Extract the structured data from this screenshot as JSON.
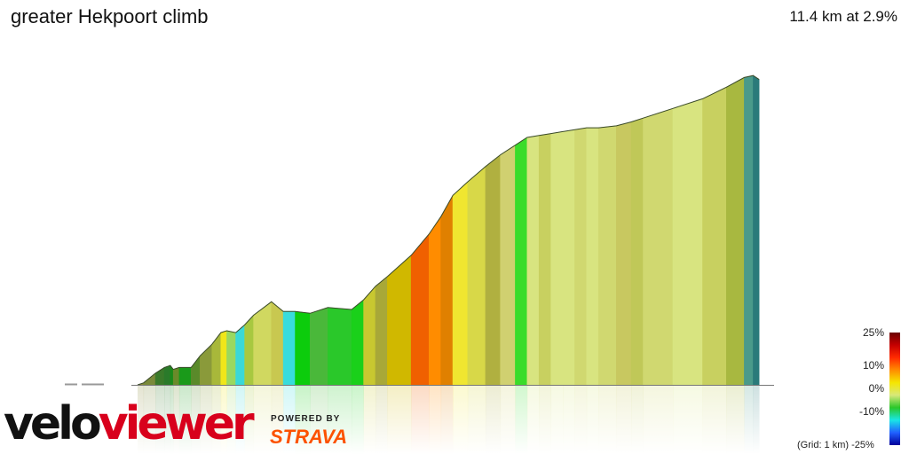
{
  "header": {
    "title": "greater Hekpoort climb",
    "summary": "11.4 km at 2.9%"
  },
  "branding": {
    "logo_left": "velo",
    "logo_right": "viewer",
    "powered_by": "POWERED BY",
    "strava": "STRAVA"
  },
  "legend": {
    "labels": [
      "25%",
      "10%",
      "0%",
      "-10%",
      "-25%"
    ],
    "grid_note": "(Grid: 1 km)",
    "colors": [
      "#6b0000",
      "#c40000",
      "#ff2a00",
      "#ff8c00",
      "#f5e600",
      "#d8e87a",
      "#2ac72a",
      "#19e6e6",
      "#2060ff",
      "#00009a"
    ]
  },
  "chart_data": {
    "type": "area",
    "title": "greater Hekpoort climb",
    "xlabel": "",
    "ylabel": "",
    "distance_km": 11.4,
    "avg_grade_pct": 2.9,
    "grid_km": 1,
    "x_km": [
      0.0,
      0.1,
      0.3,
      0.45,
      0.55,
      0.6,
      0.7,
      0.9,
      1.05,
      1.25,
      1.4,
      1.5,
      1.65,
      1.8,
      1.95,
      2.25,
      2.45,
      2.65,
      2.9,
      3.2,
      3.6,
      3.8,
      4.0,
      4.2,
      4.6,
      4.9,
      5.1,
      5.3,
      5.55,
      5.85,
      6.1,
      6.35,
      6.55,
      6.75,
      6.95,
      7.15,
      7.35,
      7.55,
      7.75,
      8.05,
      8.3,
      8.5,
      9.0,
      9.5,
      9.9,
      10.2,
      10.35,
      10.45
    ],
    "elevation_norm": [
      0.0,
      0.01,
      0.06,
      0.09,
      0.1,
      0.08,
      0.09,
      0.09,
      0.15,
      0.21,
      0.27,
      0.28,
      0.27,
      0.31,
      0.36,
      0.43,
      0.38,
      0.38,
      0.37,
      0.4,
      0.39,
      0.44,
      0.51,
      0.56,
      0.67,
      0.78,
      0.87,
      0.98,
      1.05,
      1.13,
      1.19,
      1.24,
      1.28,
      1.29,
      1.3,
      1.31,
      1.32,
      1.33,
      1.33,
      1.34,
      1.36,
      1.38,
      1.43,
      1.48,
      1.54,
      1.59,
      1.6,
      1.58
    ],
    "grade_colors": [
      "#8a8a3a",
      "#7a8a3a",
      "#3a7a2a",
      "#2a7a2a",
      "#1a8a1a",
      "#6a8a2a",
      "#1a9a1a",
      "#5a8a2a",
      "#8a9a3a",
      "#a8b83a",
      "#f0e61a",
      "#9ad860",
      "#3ad8d8",
      "#a8c840",
      "#d0d860",
      "#c8c850",
      "#38dcdc",
      "#0ccc0c",
      "#4ab83a",
      "#2ac82a",
      "#1ad01a",
      "#c8c830",
      "#a8a838",
      "#d0b800",
      "#f06000",
      "#ff8c00",
      "#e08000",
      "#f0e630",
      "#d8d848",
      "#b0b040",
      "#d0d070",
      "#3adc2a",
      "#d8e480",
      "#c8d060",
      "#d8e480",
      "#d8e480",
      "#d0d870",
      "#d8e480",
      "#d0d870",
      "#c8c860",
      "#c0c858",
      "#d0d870",
      "#d8e480",
      "#c8d060",
      "#a8b840",
      "#4a9a8a",
      "#2a7a7a"
    ]
  }
}
